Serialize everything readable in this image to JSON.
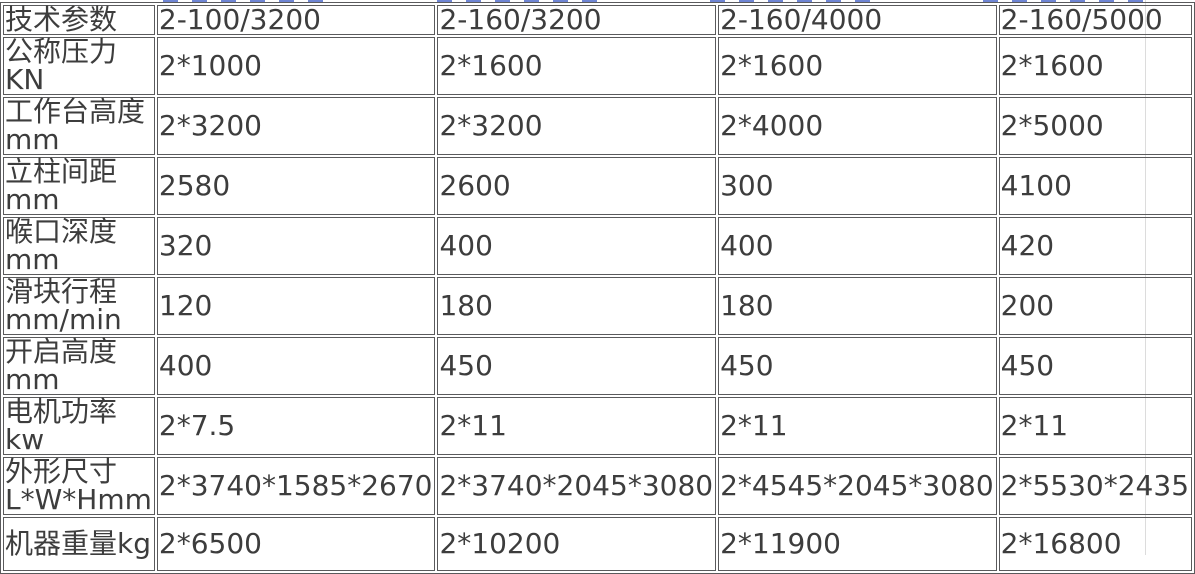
{
  "page": {
    "background_color": "#ffffff",
    "text_color": "#3d3d3d",
    "border_color": "#5a5a5c",
    "content_edge_line_color": "#dcdcdc",
    "clipped_link_color": "#4a66c8"
  },
  "table": {
    "header": {
      "label": "技术参数",
      "models": [
        "2-100/3200",
        "2-160/3200",
        "2-160/4000",
        "2-160/5000"
      ]
    },
    "rows": [
      {
        "label": "公称压力KN",
        "values": [
          "2*1000",
          "2*1600",
          "2*1600",
          "2*1600"
        ]
      },
      {
        "label": "工作台高度mm",
        "values": [
          "2*3200",
          "2*3200",
          "2*4000",
          "2*5000"
        ]
      },
      {
        "label": "立柱间距mm",
        "values": [
          "2580",
          "2600",
          "300",
          "4100"
        ]
      },
      {
        "label": "喉口深度mm",
        "values": [
          "320",
          "400",
          "400",
          "420"
        ]
      },
      {
        "label": "滑块行程mm/min",
        "values": [
          "120",
          "180",
          "180",
          "200"
        ]
      },
      {
        "label": "开启高度mm",
        "values": [
          "400",
          "450",
          "450",
          "450"
        ]
      },
      {
        "label": "电机功率kw",
        "values": [
          "2*7.5",
          "2*11",
          "2*11",
          "2*11"
        ]
      },
      {
        "label": "外形尺寸L*W*Hmm",
        "values": [
          "2*3740*1585*2670",
          "2*3740*2045*3080",
          "2*4545*2045*3080",
          "2*5530*2435"
        ]
      },
      {
        "label": "机器重量kg",
        "values": [
          "2*6500",
          "2*10200",
          "2*11900",
          "2*16800"
        ]
      }
    ]
  }
}
